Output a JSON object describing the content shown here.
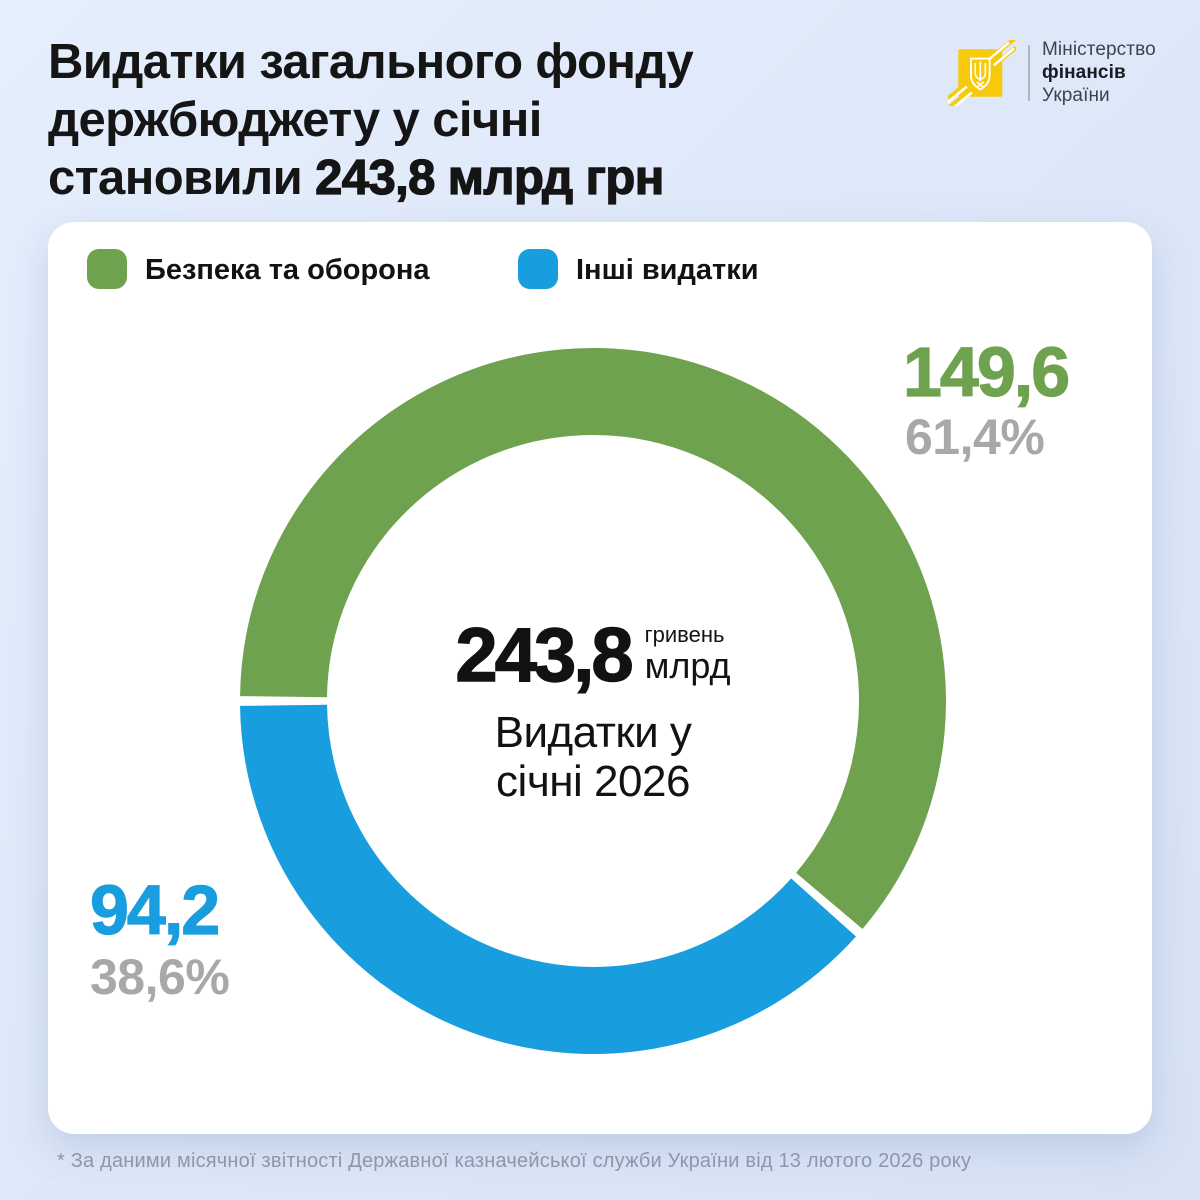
{
  "header": {
    "title_line1": "Видатки загального фонду",
    "title_line2": "держбюджету у січні",
    "title_line3_prefix": "становили ",
    "title_line3_bold": "243,8 млрд грн"
  },
  "logo": {
    "line1": "Міністерство",
    "line2": "фінансів",
    "line3": "України",
    "emblem_color": "#f6ca0a"
  },
  "chart_data": {
    "type": "pie",
    "variant": "donut",
    "start_angle_deg": 180,
    "direction": "clockwise",
    "total": 243.8,
    "units": "млрд грн",
    "legend_position": "top",
    "segments": [
      {
        "label": "Безпека та оборона",
        "value": 149.6,
        "value_label": "149,6",
        "percent": 61.4,
        "percent_label": "61,4%",
        "color": "#6fa24e"
      },
      {
        "label": "Інші видатки",
        "value": 94.2,
        "value_label": "94,2",
        "percent": 38.6,
        "percent_label": "38,6%",
        "color": "#189dde"
      }
    ],
    "center": {
      "value": "243,8",
      "unit_line1": "гривень",
      "unit_line2": "млрд",
      "caption": "Видатки у\nсічні 2026"
    }
  },
  "footnote": "* За даними місячної звітності Державної казначейської служби України від 13 лютого 2026 року",
  "colors": {
    "green": "#6fa24e",
    "blue": "#189dde",
    "muted_percent": "#a8a8a8",
    "title_text": "#151515",
    "footnote_text": "#8e97aa",
    "card_background": "#ffffff",
    "page_background": "#dde7f8"
  }
}
